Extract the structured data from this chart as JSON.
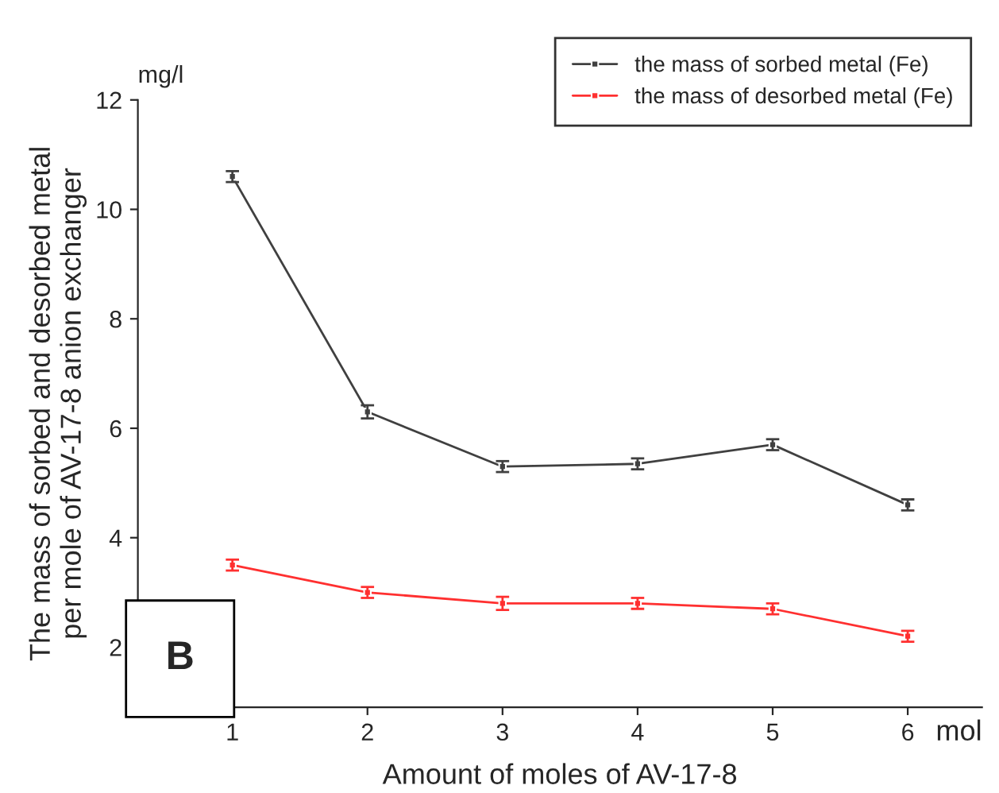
{
  "chart_data": {
    "type": "line",
    "xlabel": "Amount of moles of AV-17-8",
    "ylabel": "The mass of sorbed and desorbed metal\nper mole of AV-17-8 anion exchanger",
    "x": [
      1,
      2,
      3,
      4,
      5,
      6
    ],
    "series": [
      {
        "name": "the mass of sorbed metal (Fe)",
        "color": "#404040",
        "values": [
          10.6,
          6.3,
          5.3,
          5.35,
          5.7,
          4.6
        ],
        "errors": [
          0.1,
          0.12,
          0.1,
          0.1,
          0.1,
          0.1
        ]
      },
      {
        "name": "the mass of desorbed metal (Fe)",
        "color": "#ff3030",
        "values": [
          3.5,
          3.0,
          2.8,
          2.8,
          2.7,
          2.2
        ],
        "errors": [
          0.1,
          0.1,
          0.12,
          0.1,
          0.1,
          0.1
        ]
      }
    ],
    "xlim": [
      0.3,
      6.55
    ],
    "ylim": [
      0.9,
      12
    ],
    "xticks": [
      1,
      2,
      3,
      4,
      5,
      6
    ],
    "yticks": [
      2,
      4,
      6,
      8,
      10,
      12
    ],
    "annotations": [
      "mg/l",
      "mol",
      "B"
    ],
    "legend": "top right",
    "grid": false,
    "marker": "square",
    "line_style": "solid"
  }
}
